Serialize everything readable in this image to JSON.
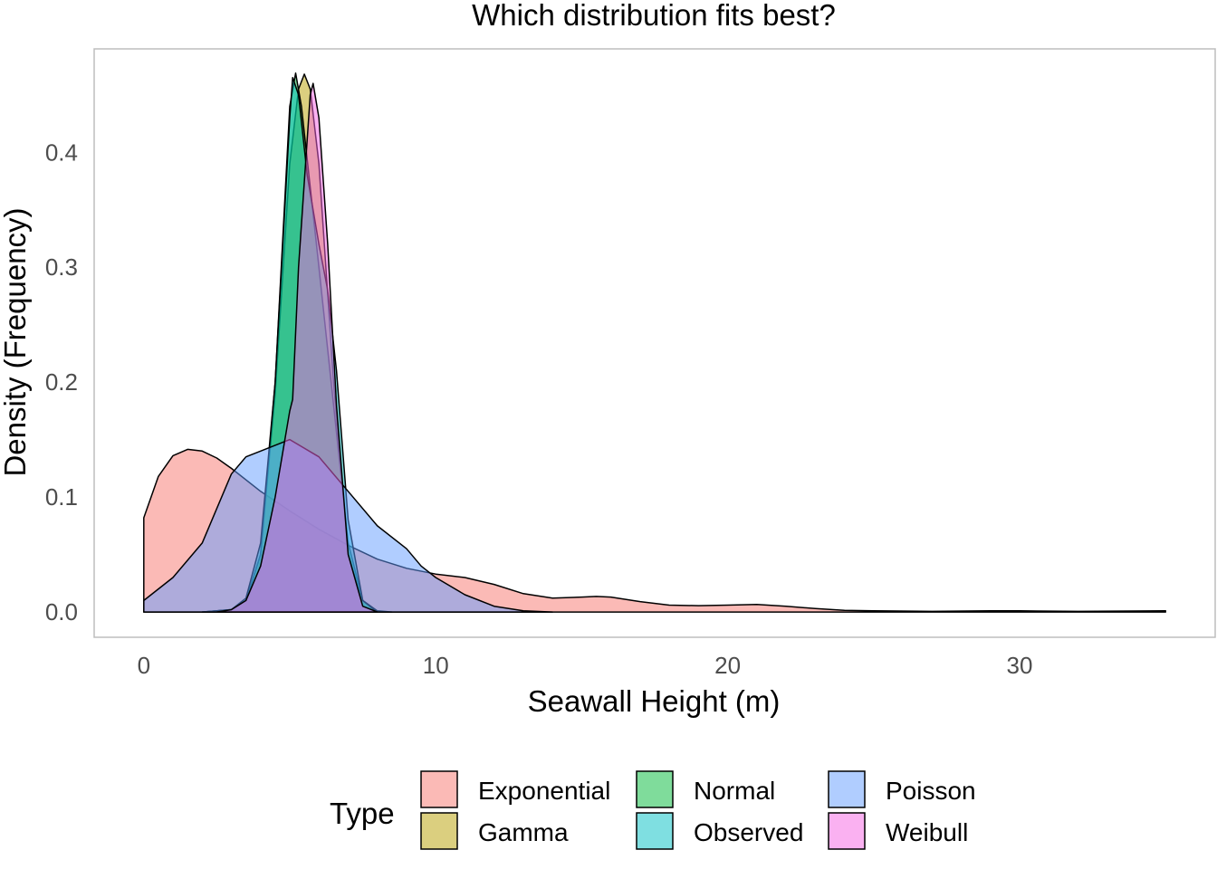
{
  "chart_data": {
    "type": "area",
    "title": "Which distribution fits best?",
    "xlabel": "Seawall Height (m)",
    "ylabel": "Density (Frequency)",
    "xlim": [
      -1.7,
      36.7
    ],
    "ylim": [
      -0.022,
      0.49
    ],
    "x_ticks": [
      0,
      10,
      20,
      30
    ],
    "x_tick_labels": [
      "0",
      "10",
      "20",
      "30"
    ],
    "y_ticks": [
      0.0,
      0.1,
      0.2,
      0.3,
      0.4
    ],
    "y_tick_labels": [
      "0.0",
      "0.1",
      "0.2",
      "0.3",
      "0.4"
    ],
    "grid": false,
    "legend": {
      "title": "Type",
      "position": "bottom"
    },
    "series": [
      {
        "name": "Exponential",
        "color": "#F8766D",
        "points": [
          [
            0,
            0.082
          ],
          [
            0.5,
            0.118
          ],
          [
            1,
            0.136
          ],
          [
            1.5,
            0.1415
          ],
          [
            2,
            0.14
          ],
          [
            2.5,
            0.134
          ],
          [
            3,
            0.125
          ],
          [
            4,
            0.105
          ],
          [
            5,
            0.088
          ],
          [
            6,
            0.072
          ],
          [
            7,
            0.058
          ],
          [
            8,
            0.046
          ],
          [
            9,
            0.038
          ],
          [
            10,
            0.033
          ],
          [
            11,
            0.03
          ],
          [
            12,
            0.024
          ],
          [
            13,
            0.016
          ],
          [
            14,
            0.012
          ],
          [
            15,
            0.013
          ],
          [
            15.5,
            0.0135
          ],
          [
            16,
            0.013
          ],
          [
            17,
            0.009
          ],
          [
            18,
            0.006
          ],
          [
            19,
            0.0055
          ],
          [
            20,
            0.006
          ],
          [
            21,
            0.0065
          ],
          [
            22,
            0.005
          ],
          [
            23,
            0.003
          ],
          [
            24,
            0.0015
          ],
          [
            25,
            0.001
          ],
          [
            27,
            0.0005
          ],
          [
            29,
            0.001
          ],
          [
            30,
            0.001
          ],
          [
            32,
            0.0005
          ],
          [
            35,
            0.001
          ]
        ]
      },
      {
        "name": "Gamma",
        "color": "#B79F00",
        "points": [
          [
            2,
            0
          ],
          [
            3,
            0.002
          ],
          [
            3.5,
            0.01
          ],
          [
            4,
            0.05
          ],
          [
            4.5,
            0.19
          ],
          [
            5,
            0.39
          ],
          [
            5.3,
            0.455
          ],
          [
            5.5,
            0.468
          ],
          [
            5.7,
            0.455
          ],
          [
            6,
            0.39
          ],
          [
            6.5,
            0.2
          ],
          [
            7,
            0.05
          ],
          [
            7.5,
            0.01
          ],
          [
            8,
            0.001
          ],
          [
            8.5,
            0
          ]
        ]
      },
      {
        "name": "Normal",
        "color": "#00BA38",
        "points": [
          [
            2,
            0
          ],
          [
            3,
            0.002
          ],
          [
            3.5,
            0.01
          ],
          [
            4,
            0.05
          ],
          [
            4.5,
            0.2
          ],
          [
            5,
            0.44
          ],
          [
            5.2,
            0.469
          ],
          [
            5.4,
            0.44
          ],
          [
            6,
            0.3
          ],
          [
            6.5,
            0.18
          ],
          [
            7,
            0.06
          ],
          [
            7.5,
            0.01
          ],
          [
            8,
            0
          ]
        ]
      },
      {
        "name": "Observed",
        "color": "#00BFC4",
        "points": [
          [
            2,
            0
          ],
          [
            3,
            0.002
          ],
          [
            3.5,
            0.012
          ],
          [
            4,
            0.06
          ],
          [
            4.5,
            0.2
          ],
          [
            5,
            0.43
          ],
          [
            5.1,
            0.465
          ],
          [
            5.3,
            0.45
          ],
          [
            5.6,
            0.38
          ],
          [
            6,
            0.32
          ],
          [
            6.3,
            0.28
          ],
          [
            6.6,
            0.21
          ],
          [
            7,
            0.08
          ],
          [
            7.5,
            0.01
          ],
          [
            8,
            0
          ]
        ]
      },
      {
        "name": "Poisson",
        "color": "#619CFF",
        "points": [
          [
            0,
            0.01
          ],
          [
            1,
            0.03
          ],
          [
            2,
            0.06
          ],
          [
            3,
            0.12
          ],
          [
            3.5,
            0.135
          ],
          [
            4,
            0.14
          ],
          [
            5,
            0.15
          ],
          [
            6,
            0.135
          ],
          [
            7,
            0.105
          ],
          [
            8,
            0.075
          ],
          [
            9,
            0.055
          ],
          [
            9.5,
            0.04
          ],
          [
            10,
            0.03
          ],
          [
            11,
            0.015
          ],
          [
            12,
            0.005
          ],
          [
            13,
            0.001
          ],
          [
            14,
            0
          ]
        ]
      },
      {
        "name": "Weibull",
        "color": "#F564E3",
        "points": [
          [
            2.5,
            0
          ],
          [
            3,
            0.002
          ],
          [
            3.5,
            0.01
          ],
          [
            4,
            0.04
          ],
          [
            4.5,
            0.1
          ],
          [
            5,
            0.175
          ],
          [
            5.1,
            0.185
          ],
          [
            5.3,
            0.3
          ],
          [
            5.7,
            0.45
          ],
          [
            5.8,
            0.46
          ],
          [
            6,
            0.43
          ],
          [
            6.3,
            0.32
          ],
          [
            6.6,
            0.18
          ],
          [
            7,
            0.05
          ],
          [
            7.5,
            0.005
          ],
          [
            8,
            0
          ]
        ]
      }
    ]
  }
}
